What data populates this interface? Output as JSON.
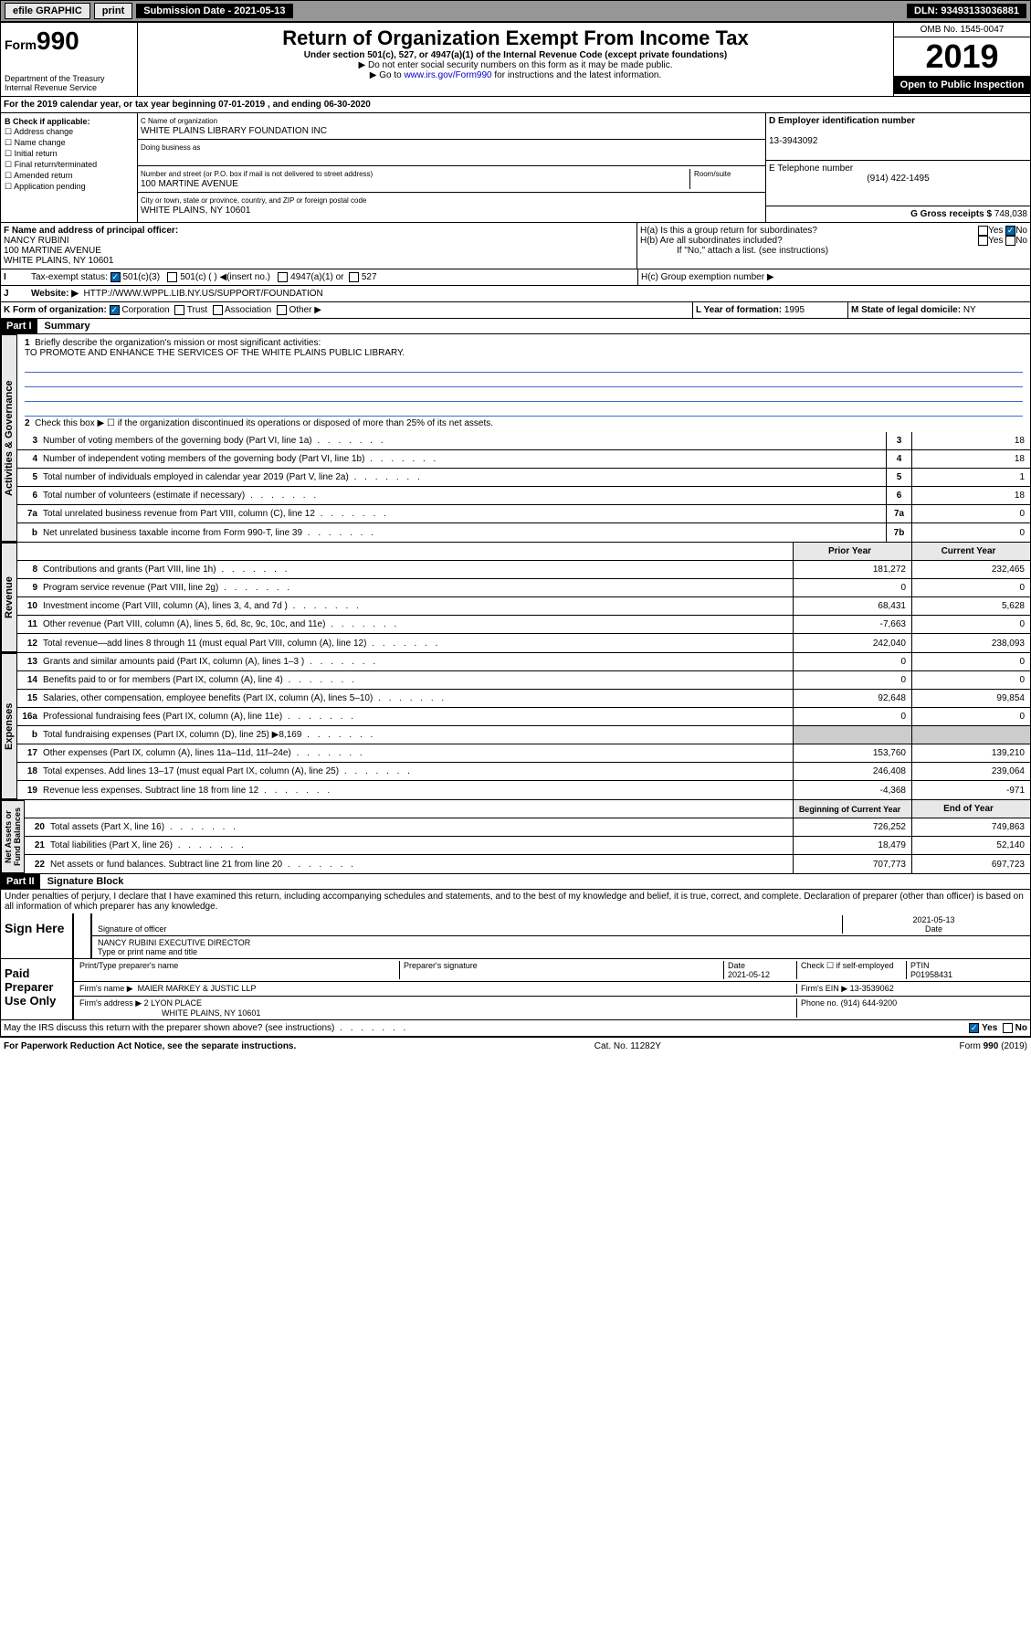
{
  "topbar": {
    "efile": "efile GRAPHIC",
    "print": "print",
    "sub_label": "Submission Date - 2021-05-13",
    "dln": "DLN: 93493133036881"
  },
  "header": {
    "form_prefix": "Form",
    "form_num": "990",
    "title": "Return of Organization Exempt From Income Tax",
    "sub1": "Under section 501(c), 527, or 4947(a)(1) of the Internal Revenue Code (except private foundations)",
    "sub2": "▶ Do not enter social security numbers on this form as it may be made public.",
    "sub3_a": "▶ Go to ",
    "sub3_link": "www.irs.gov/Form990",
    "sub3_b": " for instructions and the latest information.",
    "dept": "Department of the Treasury\nInternal Revenue Service",
    "omb": "OMB No. 1545-0047",
    "year": "2019",
    "open": "Open to Public Inspection"
  },
  "period": "For the 2019 calendar year, or tax year beginning 07-01-2019   , and ending 06-30-2020",
  "box_b": {
    "title": "B Check if applicable:",
    "items": [
      "Address change",
      "Name change",
      "Initial return",
      "Final return/terminated",
      "Amended return",
      "Application pending"
    ]
  },
  "box_c": {
    "name_lbl": "C Name of organization",
    "name": "WHITE PLAINS LIBRARY FOUNDATION INC",
    "dba_lbl": "Doing business as",
    "addr_lbl": "Number and street (or P.O. box if mail is not delivered to street address)",
    "room_lbl": "Room/suite",
    "addr": "100 MARTINE AVENUE",
    "city_lbl": "City or town, state or province, country, and ZIP or foreign postal code",
    "city": "WHITE PLAINS, NY  10601"
  },
  "box_d": {
    "lbl": "D Employer identification number",
    "val": "13-3943092"
  },
  "box_e": {
    "lbl": "E Telephone number",
    "val": "(914) 422-1495"
  },
  "box_g": {
    "lbl": "G Gross receipts $",
    "val": "748,038"
  },
  "box_f": {
    "lbl": "F  Name and address of principal officer:",
    "name": "NANCY RUBINI",
    "addr1": "100 MARTINE AVENUE",
    "addr2": "WHITE PLAINS, NY  10601"
  },
  "box_h": {
    "a": "H(a)  Is this a group return for subordinates?",
    "b": "H(b)  Are all subordinates included?",
    "b_note": "If \"No,\" attach a list. (see instructions)",
    "c": "H(c)  Group exemption number ▶",
    "yes": "Yes",
    "no": "No"
  },
  "box_i": {
    "lbl": "Tax-exempt status:",
    "opts": [
      "501(c)(3)",
      "501(c) (  ) ◀(insert no.)",
      "4947(a)(1) or",
      "527"
    ]
  },
  "box_j": {
    "lbl": "Website: ▶",
    "val": "HTTP://WWW.WPPL.LIB.NY.US/SUPPORT/FOUNDATION"
  },
  "box_k": {
    "lbl": "K Form of organization:",
    "opts": [
      "Corporation",
      "Trust",
      "Association",
      "Other ▶"
    ]
  },
  "box_l": {
    "lbl": "L Year of formation:",
    "val": "1995"
  },
  "box_m": {
    "lbl": "M State of legal domicile:",
    "val": "NY"
  },
  "part1": {
    "hdr": "Part I",
    "title": "Summary"
  },
  "summary": {
    "l1_lbl": "Briefly describe the organization's mission or most significant activities:",
    "l1_val": "TO PROMOTE AND ENHANCE THE SERVICES OF THE WHITE PLAINS PUBLIC LIBRARY.",
    "l2": "Check this box ▶ ☐  if the organization discontinued its operations or disposed of more than 25% of its net assets.",
    "lines_gov": [
      {
        "n": "3",
        "t": "Number of voting members of the governing body (Part VI, line 1a)",
        "b": "3",
        "v": "18"
      },
      {
        "n": "4",
        "t": "Number of independent voting members of the governing body (Part VI, line 1b)",
        "b": "4",
        "v": "18"
      },
      {
        "n": "5",
        "t": "Total number of individuals employed in calendar year 2019 (Part V, line 2a)",
        "b": "5",
        "v": "1"
      },
      {
        "n": "6",
        "t": "Total number of volunteers (estimate if necessary)",
        "b": "6",
        "v": "18"
      },
      {
        "n": "7a",
        "t": "Total unrelated business revenue from Part VIII, column (C), line 12",
        "b": "7a",
        "v": "0"
      },
      {
        "n": "b",
        "t": "Net unrelated business taxable income from Form 990-T, line 39",
        "b": "7b",
        "v": "0"
      }
    ],
    "col_prior": "Prior Year",
    "col_curr": "Current Year",
    "lines_rev": [
      {
        "n": "8",
        "t": "Contributions and grants (Part VIII, line 1h)",
        "p": "181,272",
        "c": "232,465"
      },
      {
        "n": "9",
        "t": "Program service revenue (Part VIII, line 2g)",
        "p": "0",
        "c": "0"
      },
      {
        "n": "10",
        "t": "Investment income (Part VIII, column (A), lines 3, 4, and 7d )",
        "p": "68,431",
        "c": "5,628"
      },
      {
        "n": "11",
        "t": "Other revenue (Part VIII, column (A), lines 5, 6d, 8c, 9c, 10c, and 11e)",
        "p": "-7,663",
        "c": "0"
      },
      {
        "n": "12",
        "t": "Total revenue—add lines 8 through 11 (must equal Part VIII, column (A), line 12)",
        "p": "242,040",
        "c": "238,093"
      }
    ],
    "lines_exp": [
      {
        "n": "13",
        "t": "Grants and similar amounts paid (Part IX, column (A), lines 1–3 )",
        "p": "0",
        "c": "0"
      },
      {
        "n": "14",
        "t": "Benefits paid to or for members (Part IX, column (A), line 4)",
        "p": "0",
        "c": "0"
      },
      {
        "n": "15",
        "t": "Salaries, other compensation, employee benefits (Part IX, column (A), lines 5–10)",
        "p": "92,648",
        "c": "99,854"
      },
      {
        "n": "16a",
        "t": "Professional fundraising fees (Part IX, column (A), line 11e)",
        "p": "0",
        "c": "0"
      },
      {
        "n": "b",
        "t": "Total fundraising expenses (Part IX, column (D), line 25) ▶8,169",
        "p": "",
        "c": ""
      },
      {
        "n": "17",
        "t": "Other expenses (Part IX, column (A), lines 11a–11d, 11f–24e)",
        "p": "153,760",
        "c": "139,210"
      },
      {
        "n": "18",
        "t": "Total expenses. Add lines 13–17 (must equal Part IX, column (A), line 25)",
        "p": "246,408",
        "c": "239,064"
      },
      {
        "n": "19",
        "t": "Revenue less expenses. Subtract line 18 from line 12",
        "p": "-4,368",
        "c": "-971"
      }
    ],
    "col_beg": "Beginning of Current Year",
    "col_end": "End of Year",
    "lines_net": [
      {
        "n": "20",
        "t": "Total assets (Part X, line 16)",
        "p": "726,252",
        "c": "749,863"
      },
      {
        "n": "21",
        "t": "Total liabilities (Part X, line 26)",
        "p": "18,479",
        "c": "52,140"
      },
      {
        "n": "22",
        "t": "Net assets or fund balances. Subtract line 21 from line 20",
        "p": "707,773",
        "c": "697,723"
      }
    ]
  },
  "vtabs": {
    "gov": "Activities & Governance",
    "rev": "Revenue",
    "exp": "Expenses",
    "net": "Net Assets or\nFund Balances"
  },
  "part2": {
    "hdr": "Part II",
    "title": "Signature Block"
  },
  "perjury": "Under penalties of perjury, I declare that I have examined this return, including accompanying schedules and statements, and to the best of my knowledge and belief, it is true, correct, and complete. Declaration of preparer (other than officer) is based on all information of which preparer has any knowledge.",
  "sign": {
    "lbl": "Sign Here",
    "sig_lbl": "Signature of officer",
    "date": "2021-05-13",
    "date_lbl": "Date",
    "name": "NANCY RUBINI  EXECUTIVE DIRECTOR",
    "name_lbl": "Type or print name and title"
  },
  "paid": {
    "lbl": "Paid Preparer Use Only",
    "prep_name_lbl": "Print/Type preparer's name",
    "prep_sig_lbl": "Preparer's signature",
    "prep_date_lbl": "Date",
    "prep_date": "2021-05-12",
    "self_lbl": "Check ☐ if self-employed",
    "ptin_lbl": "PTIN",
    "ptin": "P01958431",
    "firm_name_lbl": "Firm's name    ▶",
    "firm_name": "MAIER MARKEY & JUSTIC LLP",
    "firm_ein_lbl": "Firm's EIN ▶",
    "firm_ein": "13-3539062",
    "firm_addr_lbl": "Firm's address ▶",
    "firm_addr1": "2 LYON PLACE",
    "firm_addr2": "WHITE PLAINS, NY  10601",
    "phone_lbl": "Phone no.",
    "phone": "(914) 644-9200"
  },
  "discuss": "May the IRS discuss this return with the preparer shown above? (see instructions)",
  "footer": {
    "pra": "For Paperwork Reduction Act Notice, see the separate instructions.",
    "cat": "Cat. No. 11282Y",
    "form": "Form 990 (2019)"
  }
}
